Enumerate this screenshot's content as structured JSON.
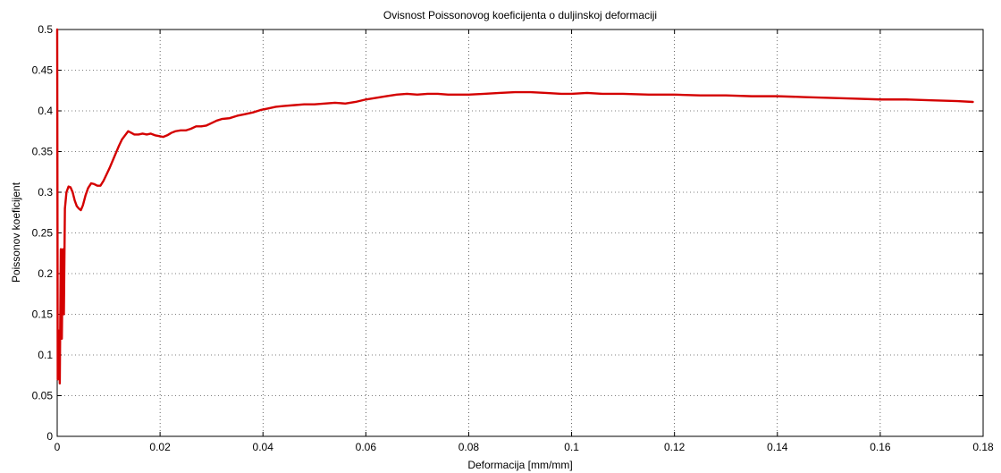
{
  "chart_data": {
    "type": "line",
    "title": "Ovisnost Poissonovog koeficijenta o duljinskoj deformaciji",
    "xlabel": "Deformacija [mm/mm]",
    "ylabel": "Poissonov koeficijent",
    "xlim": [
      0,
      0.18
    ],
    "ylim": [
      0,
      0.5
    ],
    "xticks": [
      "0",
      "0.02",
      "0.04",
      "0.06",
      "0.08",
      "0.1",
      "0.12",
      "0.14",
      "0.16",
      "0.18"
    ],
    "yticks": [
      "0",
      "0.05",
      "0.1",
      "0.15",
      "0.2",
      "0.25",
      "0.3",
      "0.35",
      "0.4",
      "0.45",
      "0.5"
    ],
    "grid": true,
    "line_color": "#d40000",
    "series": [
      {
        "x": [
          0.0,
          0.0001,
          0.0003,
          0.0005,
          0.0007,
          0.0009,
          0.0011,
          0.0013,
          0.0015,
          0.0018,
          0.0022,
          0.0026,
          0.003,
          0.0034,
          0.0038,
          0.0042,
          0.0046,
          0.005,
          0.0055,
          0.006,
          0.0066,
          0.0072,
          0.0078,
          0.0084,
          0.009,
          0.0096,
          0.0102,
          0.0108,
          0.0114,
          0.012,
          0.0126,
          0.0132,
          0.0138,
          0.0144,
          0.015,
          0.0158,
          0.0166,
          0.0174,
          0.0182,
          0.019,
          0.0198,
          0.0206,
          0.0214,
          0.0222,
          0.023,
          0.024,
          0.025,
          0.026,
          0.027,
          0.028,
          0.029,
          0.03,
          0.031,
          0.032,
          0.0335,
          0.035,
          0.0365,
          0.038,
          0.0395,
          0.041,
          0.0425,
          0.044,
          0.046,
          0.048,
          0.05,
          0.052,
          0.054,
          0.056,
          0.058,
          0.06,
          0.062,
          0.064,
          0.066,
          0.068,
          0.07,
          0.072,
          0.074,
          0.076,
          0.078,
          0.08,
          0.083,
          0.086,
          0.089,
          0.092,
          0.095,
          0.098,
          0.1,
          0.103,
          0.106,
          0.11,
          0.115,
          0.12,
          0.125,
          0.13,
          0.135,
          0.14,
          0.145,
          0.15,
          0.155,
          0.16,
          0.165,
          0.17,
          0.175,
          0.178
        ],
        "y": [
          0.5,
          0.07,
          0.13,
          0.065,
          0.23,
          0.12,
          0.23,
          0.15,
          0.28,
          0.3,
          0.307,
          0.306,
          0.3,
          0.29,
          0.283,
          0.28,
          0.278,
          0.284,
          0.296,
          0.305,
          0.311,
          0.31,
          0.308,
          0.308,
          0.314,
          0.322,
          0.33,
          0.339,
          0.348,
          0.357,
          0.365,
          0.37,
          0.375,
          0.373,
          0.371,
          0.371,
          0.372,
          0.371,
          0.372,
          0.37,
          0.369,
          0.368,
          0.37,
          0.373,
          0.375,
          0.376,
          0.376,
          0.378,
          0.381,
          0.381,
          0.382,
          0.385,
          0.388,
          0.39,
          0.391,
          0.394,
          0.396,
          0.398,
          0.401,
          0.403,
          0.405,
          0.406,
          0.407,
          0.408,
          0.408,
          0.409,
          0.41,
          0.409,
          0.411,
          0.414,
          0.416,
          0.418,
          0.42,
          0.421,
          0.42,
          0.421,
          0.421,
          0.42,
          0.42,
          0.42,
          0.421,
          0.422,
          0.423,
          0.423,
          0.422,
          0.421,
          0.421,
          0.422,
          0.421,
          0.421,
          0.42,
          0.42,
          0.419,
          0.419,
          0.418,
          0.418,
          0.417,
          0.416,
          0.415,
          0.414,
          0.414,
          0.413,
          0.412,
          0.411
        ]
      }
    ]
  }
}
